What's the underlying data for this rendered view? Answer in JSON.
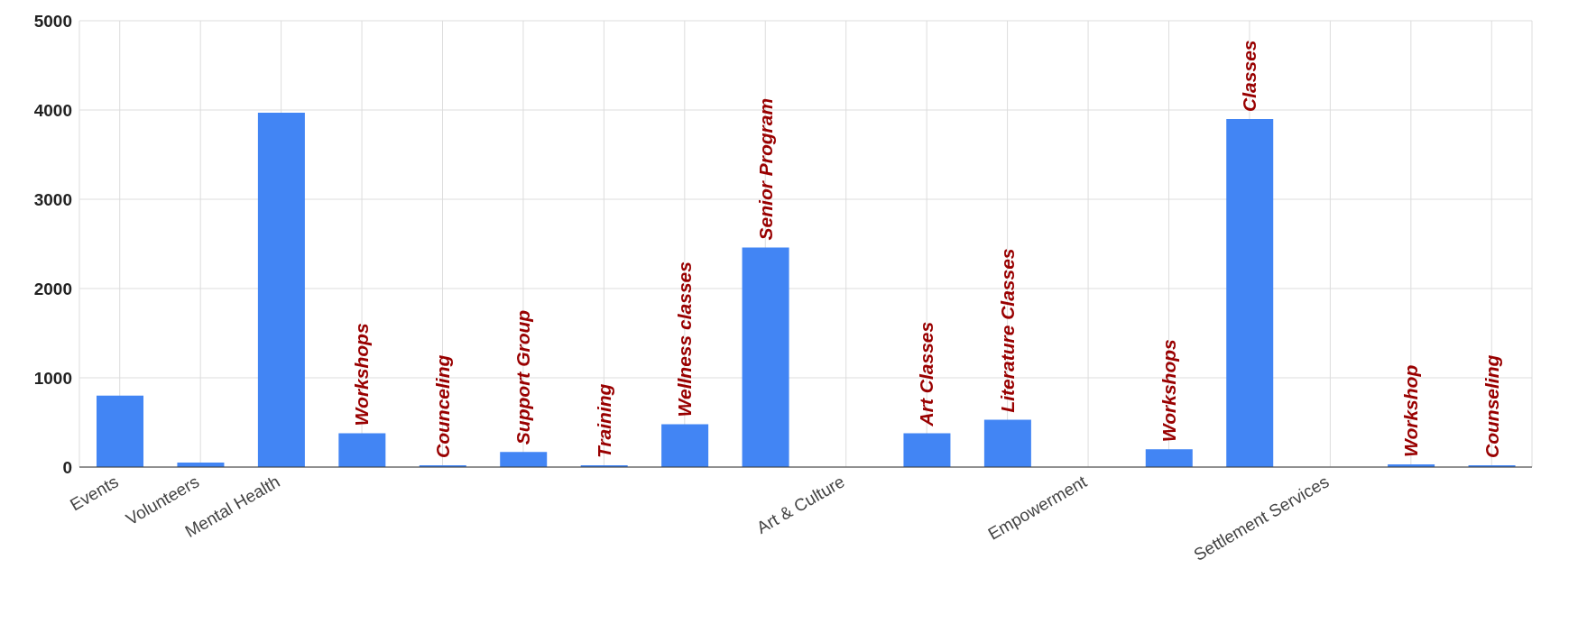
{
  "chart_data": {
    "type": "bar",
    "categories": [
      "Events",
      "Volunteers",
      "Mental Health",
      null,
      null,
      null,
      null,
      null,
      null,
      "Art & Culture",
      null,
      null,
      "Empowerment",
      null,
      null,
      "Settlement Services",
      null,
      null
    ],
    "values": [
      800,
      50,
      3970,
      380,
      0,
      170,
      20,
      480,
      2460,
      null,
      380,
      530,
      null,
      200,
      3900,
      null,
      30,
      0
    ],
    "value_labels": [
      null,
      null,
      null,
      "Workshops",
      "Counceling",
      "Support Group",
      "Training",
      "Wellness classes",
      "Senior Program",
      null,
      "Art Classes",
      "Literature Classes",
      null,
      "Workshops",
      "Classes",
      null,
      "Workshop",
      "Counseling"
    ],
    "color": "#4285f4",
    "ylim": [
      0,
      5000
    ],
    "yticks": [
      0,
      1000,
      2000,
      3000,
      4000,
      5000
    ],
    "grid": true
  }
}
